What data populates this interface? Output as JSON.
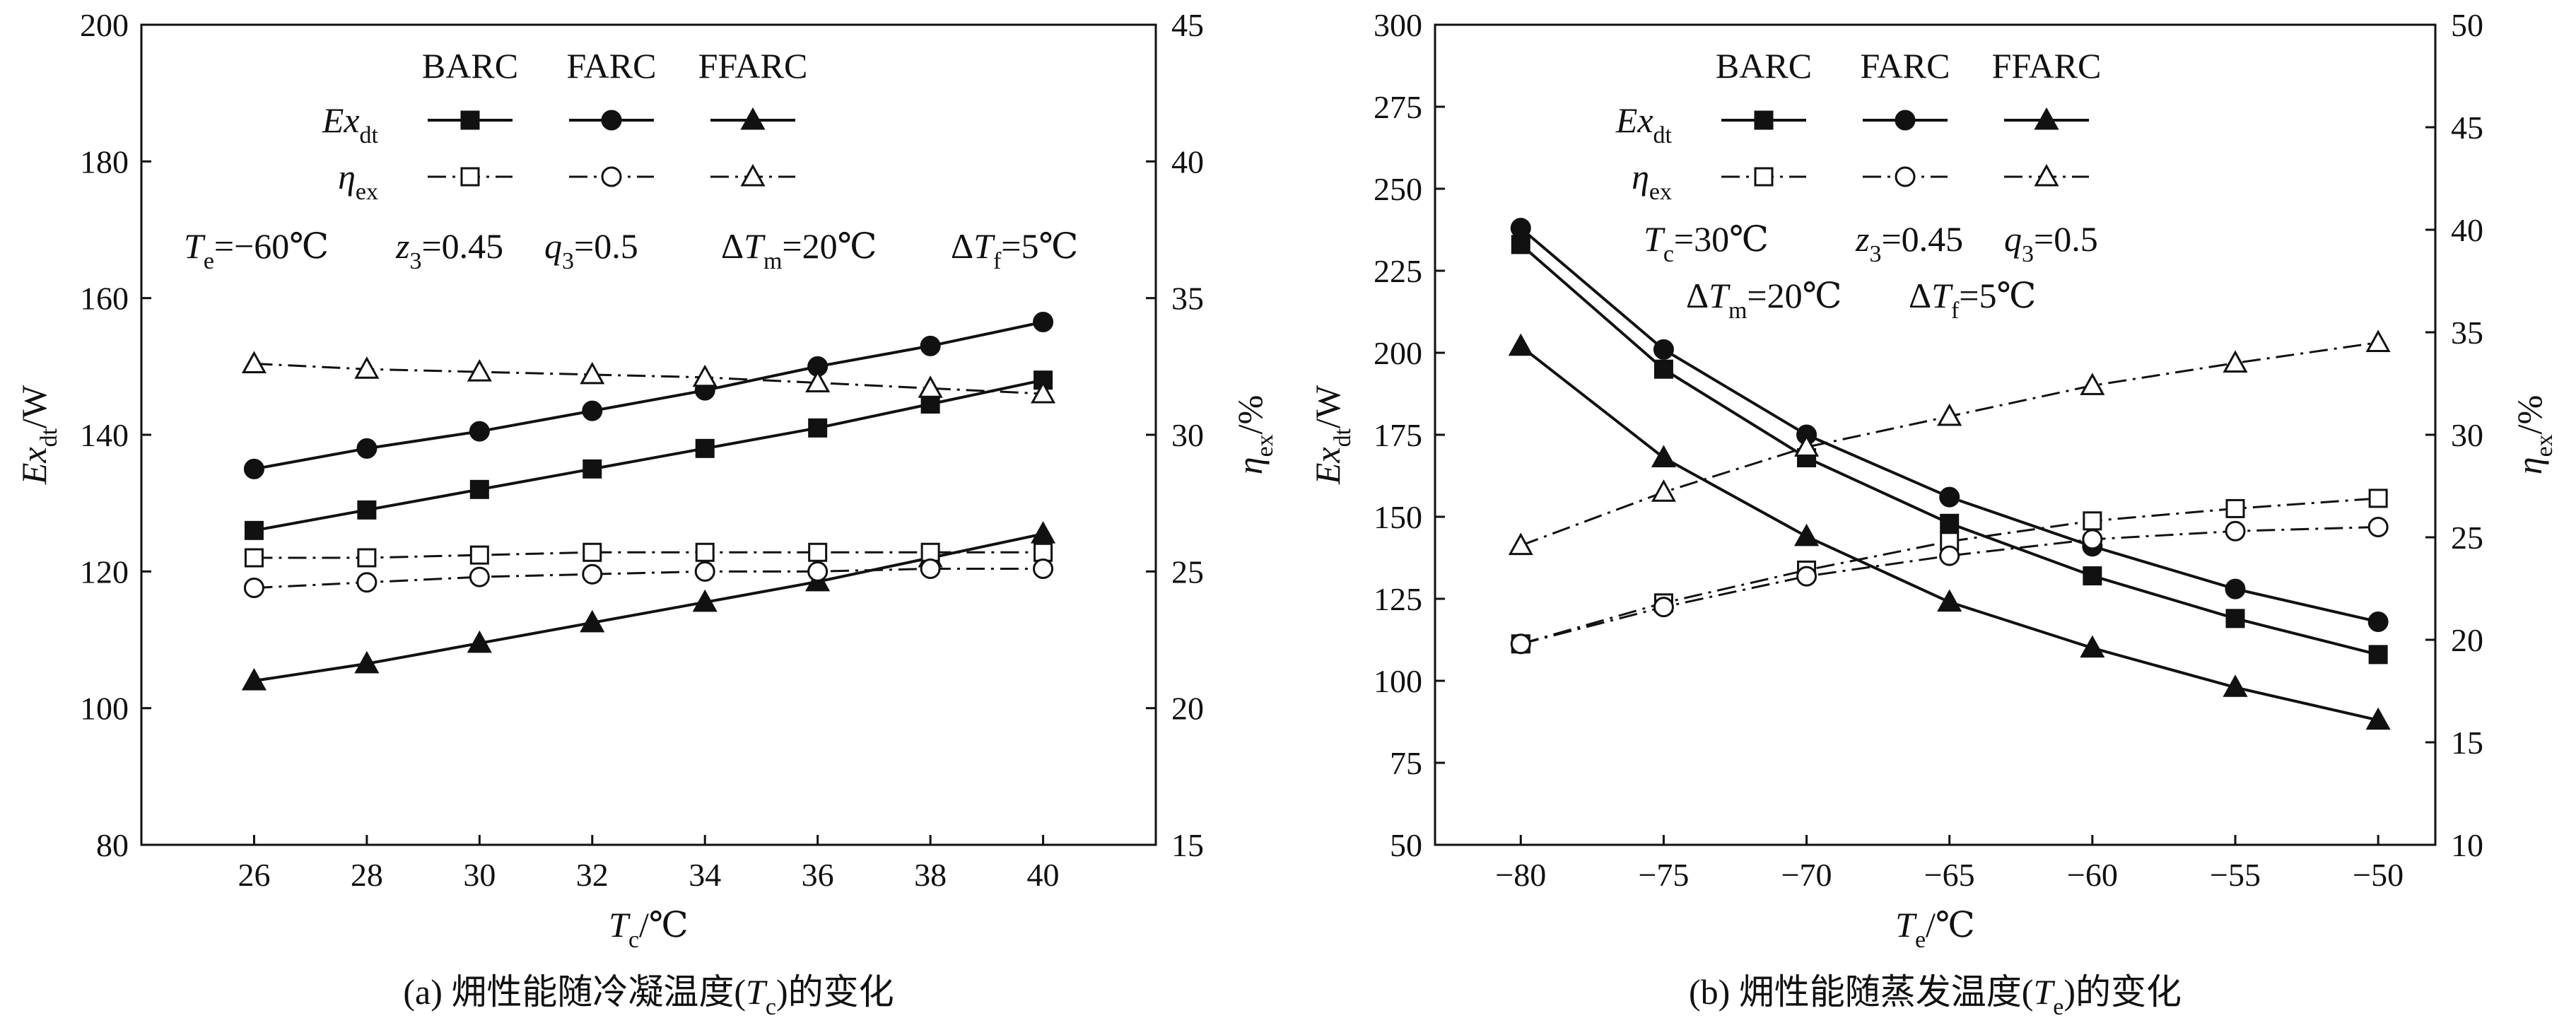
{
  "chart_data": [
    {
      "type": "line",
      "caption": "(a) 㶲性能随冷凝温度(Tc)的变化",
      "caption_parts": {
        "prefix": "(a) 㶲性能随冷凝温度(",
        "var": "T",
        "sub": "c",
        "suffix": ")的变化"
      },
      "xlabel": {
        "var": "T",
        "sub": "c",
        "unit": "/℃"
      },
      "ylabel_left": {
        "var": "Ex",
        "sub": "dt",
        "unit": "/W"
      },
      "ylabel_right": {
        "var": "η",
        "sub": "ex",
        "unit": "/%"
      },
      "x": [
        26,
        28,
        30,
        32,
        34,
        36,
        38,
        40
      ],
      "xlim": [
        24,
        42
      ],
      "xticks": [
        26,
        28,
        30,
        32,
        34,
        36,
        38,
        40
      ],
      "ylim_left": [
        80,
        200
      ],
      "yticks_left": [
        80,
        100,
        120,
        140,
        160,
        180,
        200
      ],
      "ylim_right": [
        15,
        45
      ],
      "yticks_right": [
        15,
        20,
        25,
        30,
        35,
        40,
        45
      ],
      "series": [
        {
          "name": "BARC",
          "quantity": "Exdt",
          "axis": "left",
          "marker": "square",
          "filled": true,
          "dash": "solid",
          "values": [
            126,
            129,
            132,
            135,
            138,
            141,
            144.5,
            148
          ]
        },
        {
          "name": "FARC",
          "quantity": "Exdt",
          "axis": "left",
          "marker": "circle",
          "filled": true,
          "dash": "solid",
          "values": [
            135,
            138,
            140.5,
            143.5,
            146.5,
            150,
            153,
            156.5
          ]
        },
        {
          "name": "FFARC",
          "quantity": "Exdt",
          "axis": "left",
          "marker": "triangle",
          "filled": true,
          "dash": "solid",
          "values": [
            104,
            106.5,
            109.5,
            112.5,
            115.5,
            118.5,
            122,
            125.5
          ]
        },
        {
          "name": "BARC",
          "quantity": "ηex",
          "axis": "right",
          "marker": "square",
          "filled": false,
          "dash": "dashdot",
          "values": [
            25.5,
            25.5,
            25.6,
            25.7,
            25.7,
            25.7,
            25.7,
            25.7
          ]
        },
        {
          "name": "FARC",
          "quantity": "ηex",
          "axis": "right",
          "marker": "circle",
          "filled": false,
          "dash": "dashdot",
          "values": [
            24.4,
            24.6,
            24.8,
            24.9,
            25,
            25,
            25.1,
            25.1
          ]
        },
        {
          "name": "FFARC",
          "quantity": "ηex",
          "axis": "right",
          "marker": "triangle",
          "filled": false,
          "dash": "dashdot",
          "values": [
            32.6,
            32.4,
            32.3,
            32.2,
            32.1,
            31.9,
            31.7,
            31.5
          ]
        }
      ],
      "legend": {
        "placement": "top",
        "headers": [
          "BARC",
          "FARC",
          "FFARC"
        ],
        "row1": {
          "var": "Ex",
          "sub": "dt"
        },
        "row2": {
          "var": "η",
          "sub": "ex"
        }
      },
      "conditions": [
        [
          {
            "var": "T",
            "sub": "e",
            "val": "=−60℃"
          },
          {
            "var": "z",
            "sub": "3",
            "val": "=0.45"
          },
          {
            "var": "q",
            "sub": "3",
            "val": "=0.5"
          },
          {
            "pre": "Δ",
            "var": "T",
            "sub": "m",
            "val": "=20℃"
          },
          {
            "pre": "Δ",
            "var": "T",
            "sub": "f",
            "val": "=5℃"
          }
        ]
      ]
    },
    {
      "type": "line",
      "caption": "(b) 㶲性能随蒸发温度(Te)的变化",
      "caption_parts": {
        "prefix": "(b) 㶲性能随蒸发温度(",
        "var": "T",
        "sub": "e",
        "suffix": ")的变化"
      },
      "xlabel": {
        "var": "T",
        "sub": "e",
        "unit": "/℃"
      },
      "ylabel_left": {
        "var": "Ex",
        "sub": "dt",
        "unit": "/W"
      },
      "ylabel_right": {
        "var": "η",
        "sub": "ex",
        "unit": "/%"
      },
      "x": [
        -80,
        -75,
        -70,
        -65,
        -60,
        -55,
        -50
      ],
      "xlim": [
        -83,
        -48
      ],
      "xticks": [
        -80,
        -75,
        -70,
        -65,
        -60,
        -55,
        -50
      ],
      "xticklabels": [
        "−80",
        "−75",
        "−70",
        "−65",
        "−60",
        "−55",
        "−50"
      ],
      "ylim_left": [
        50,
        300
      ],
      "yticks_left": [
        50,
        75,
        100,
        125,
        150,
        175,
        200,
        225,
        250,
        275,
        300
      ],
      "ylim_right": [
        10,
        50
      ],
      "yticks_right": [
        10,
        15,
        20,
        25,
        30,
        35,
        40,
        45,
        50
      ],
      "series": [
        {
          "name": "BARC",
          "quantity": "Exdt",
          "axis": "left",
          "marker": "square",
          "filled": true,
          "dash": "solid",
          "values": [
            233,
            195,
            168,
            148,
            132,
            119,
            108
          ]
        },
        {
          "name": "FARC",
          "quantity": "Exdt",
          "axis": "left",
          "marker": "circle",
          "filled": true,
          "dash": "solid",
          "values": [
            238,
            201,
            175,
            156,
            141,
            128,
            118
          ]
        },
        {
          "name": "FFARC",
          "quantity": "Exdt",
          "axis": "left",
          "marker": "triangle",
          "filled": true,
          "dash": "solid",
          "values": [
            202,
            168,
            144,
            124,
            110,
            98,
            88
          ]
        },
        {
          "name": "BARC",
          "quantity": "ηex",
          "axis": "right",
          "marker": "square",
          "filled": false,
          "dash": "dashdot",
          "values": [
            19.8,
            21.8,
            23.4,
            24.8,
            25.8,
            26.4,
            26.9
          ]
        },
        {
          "name": "FARC",
          "quantity": "ηex",
          "axis": "right",
          "marker": "circle",
          "filled": false,
          "dash": "dashdot",
          "values": [
            19.8,
            21.6,
            23.1,
            24.1,
            24.9,
            25.3,
            25.5
          ]
        },
        {
          "name": "FFARC",
          "quantity": "ηex",
          "axis": "right",
          "marker": "triangle",
          "filled": false,
          "dash": "dashdot",
          "values": [
            24.6,
            27.2,
            29.4,
            30.9,
            32.4,
            33.5,
            34.5
          ]
        }
      ],
      "legend": {
        "placement": "top",
        "headers": [
          "BARC",
          "FARC",
          "FFARC"
        ],
        "row1": {
          "var": "Ex",
          "sub": "dt"
        },
        "row2": {
          "var": "η",
          "sub": "ex"
        }
      },
      "conditions": [
        [
          {
            "var": "T",
            "sub": "c",
            "val": "=30℃"
          },
          {
            "var": "z",
            "sub": "3",
            "val": "=0.45"
          },
          {
            "var": "q",
            "sub": "3",
            "val": "=0.5"
          }
        ],
        [
          {
            "pre": "Δ",
            "var": "T",
            "sub": "m",
            "val": "=20℃"
          },
          {
            "pre": "Δ",
            "var": "T",
            "sub": "f",
            "val": "=5℃"
          }
        ]
      ]
    }
  ]
}
